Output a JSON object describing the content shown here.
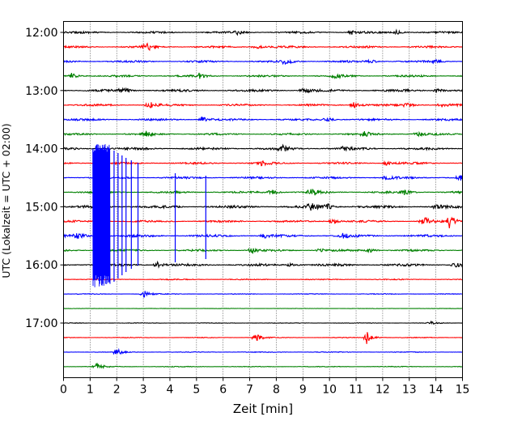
{
  "chart_data": {
    "type": "line",
    "title": "",
    "xlabel": "Zeit  [min]",
    "ylabel": "UTC (Lokalzeit = UTC + 02:00)",
    "xlim": [
      0,
      15
    ],
    "x_ticks": [
      "0",
      "1",
      "2",
      "3",
      "4",
      "5",
      "6",
      "7",
      "8",
      "9",
      "10",
      "11",
      "12",
      "13",
      "14",
      "15"
    ],
    "y_ticks": [
      {
        "label": "12:00",
        "trace": 0
      },
      {
        "label": "13:00",
        "trace": 4
      },
      {
        "label": "14:00",
        "trace": 8
      },
      {
        "label": "15:00",
        "trace": 12
      },
      {
        "label": "16:00",
        "trace": 16
      },
      {
        "label": "17:00",
        "trace": 20
      }
    ],
    "grid": {
      "x": true,
      "style": "dotted"
    },
    "trace_interval_min": 15,
    "colors": [
      "#000000",
      "#ff0000",
      "#0000ff",
      "#008000"
    ],
    "traces": [
      {
        "start": "12:00",
        "color": "#000000",
        "noise": 1.0,
        "events": [
          {
            "t": 6.5,
            "amp": 2.5
          },
          {
            "t": 10.8,
            "amp": 3
          },
          {
            "t": 12.5,
            "amp": 3
          }
        ]
      },
      {
        "start": "12:15",
        "color": "#ff0000",
        "noise": 1.0,
        "events": [
          {
            "t": 3.1,
            "amp": 6
          },
          {
            "t": 7.2,
            "amp": 3
          }
        ]
      },
      {
        "start": "12:30",
        "color": "#0000ff",
        "noise": 1.0,
        "events": [
          {
            "t": 8.3,
            "amp": 5
          },
          {
            "t": 11.5,
            "amp": 3
          },
          {
            "t": 14.0,
            "amp": 2
          }
        ]
      },
      {
        "start": "12:45",
        "color": "#008000",
        "noise": 1.0,
        "events": [
          {
            "t": 0.3,
            "amp": 4
          },
          {
            "t": 5.1,
            "amp": 3
          },
          {
            "t": 10.2,
            "amp": 3
          }
        ]
      },
      {
        "start": "13:00",
        "color": "#000000",
        "noise": 1.2,
        "events": [
          {
            "t": 2.2,
            "amp": 4
          },
          {
            "t": 9.0,
            "amp": 4
          },
          {
            "t": 14.0,
            "amp": 3
          }
        ]
      },
      {
        "start": "13:15",
        "color": "#ff0000",
        "noise": 1.0,
        "events": [
          {
            "t": 3.2,
            "amp": 5
          },
          {
            "t": 10.9,
            "amp": 5
          },
          {
            "t": 12.9,
            "amp": 4
          },
          {
            "t": 14.2,
            "amp": 3
          }
        ]
      },
      {
        "start": "13:30",
        "color": "#0000ff",
        "noise": 1.0,
        "events": [
          {
            "t": 5.2,
            "amp": 4
          },
          {
            "t": 9.9,
            "amp": 3
          }
        ]
      },
      {
        "start": "13:45",
        "color": "#008000",
        "noise": 1.0,
        "events": [
          {
            "t": 3.1,
            "amp": 3
          },
          {
            "t": 11.3,
            "amp": 3
          },
          {
            "t": 13.3,
            "amp": 3
          }
        ]
      },
      {
        "start": "14:00",
        "color": "#000000",
        "noise": 1.2,
        "events": [
          {
            "t": 8.2,
            "amp": 4
          },
          {
            "t": 10.5,
            "amp": 3
          }
        ]
      },
      {
        "start": "14:15",
        "color": "#ff0000",
        "noise": 1.0,
        "events": [
          {
            "t": 7.4,
            "amp": 3
          },
          {
            "t": 12.1,
            "amp": 3
          }
        ]
      },
      {
        "start": "14:30",
        "color": "#0000ff",
        "noise": 1.0,
        "events": [
          {
            "t": 12.1,
            "amp": 3
          },
          {
            "t": 14.9,
            "amp": 4
          }
        ]
      },
      {
        "start": "14:45",
        "color": "#008000",
        "noise": 1.0,
        "events": [
          {
            "t": 7.8,
            "amp": 4
          },
          {
            "t": 9.3,
            "amp": 6
          },
          {
            "t": 12.8,
            "amp": 3
          }
        ]
      },
      {
        "start": "15:00",
        "color": "#000000",
        "noise": 1.3,
        "events": [
          {
            "t": 9.3,
            "amp": 6
          },
          {
            "t": 9.9,
            "amp": 4
          },
          {
            "t": 14.0,
            "amp": 3
          }
        ]
      },
      {
        "start": "15:15",
        "color": "#ff0000",
        "noise": 1.0,
        "events": [
          {
            "t": 10.1,
            "amp": 4
          },
          {
            "t": 13.5,
            "amp": 7
          },
          {
            "t": 14.5,
            "amp": 9
          }
        ]
      },
      {
        "start": "15:30",
        "color": "#0000ff",
        "noise": 1.2,
        "events": [
          {
            "t": 0.5,
            "amp": 5
          },
          {
            "t": 7.5,
            "amp": 3
          },
          {
            "t": 10.5,
            "amp": 3
          }
        ]
      },
      {
        "start": "15:45",
        "color": "#008000",
        "noise": 1.0,
        "events": [
          {
            "t": 7.1,
            "amp": 5
          },
          {
            "t": 9.6,
            "amp": 3
          },
          {
            "t": 11.5,
            "amp": 3
          }
        ]
      },
      {
        "start": "16:00",
        "color": "#000000",
        "noise": 1.2,
        "events": [
          {
            "t": 3.5,
            "amp": 4
          },
          {
            "t": 8.5,
            "amp": 3
          },
          {
            "t": 14.7,
            "amp": 3
          }
        ]
      },
      {
        "start": "16:15",
        "color": "#ff0000",
        "noise": 0.5,
        "events": []
      },
      {
        "start": "16:30",
        "color": "#0000ff",
        "noise": 0.4,
        "events": [
          {
            "t": 3.0,
            "amp": 5
          }
        ]
      },
      {
        "start": "16:45",
        "color": "#008000",
        "noise": 0.2,
        "events": []
      },
      {
        "start": "17:00",
        "color": "#000000",
        "noise": 0.3,
        "events": [
          {
            "t": 13.8,
            "amp": 2
          }
        ]
      },
      {
        "start": "17:15",
        "color": "#ff0000",
        "noise": 0.4,
        "events": [
          {
            "t": 7.2,
            "amp": 7
          },
          {
            "t": 11.4,
            "amp": 8
          }
        ]
      },
      {
        "start": "17:30",
        "color": "#0000ff",
        "noise": 0.4,
        "events": [
          {
            "t": 2.0,
            "amp": 6
          }
        ]
      },
      {
        "start": "17:45",
        "color": "#008000",
        "noise": 0.4,
        "events": [
          {
            "t": 1.2,
            "amp": 6
          }
        ]
      }
    ],
    "large_event": {
      "trace": 10,
      "color": "#0000ff",
      "start_min": 1.1,
      "end_min": 1.75,
      "spikes_min": [
        1.9,
        2.05,
        2.2,
        2.35,
        2.55,
        2.8,
        4.2,
        5.35
      ]
    }
  }
}
